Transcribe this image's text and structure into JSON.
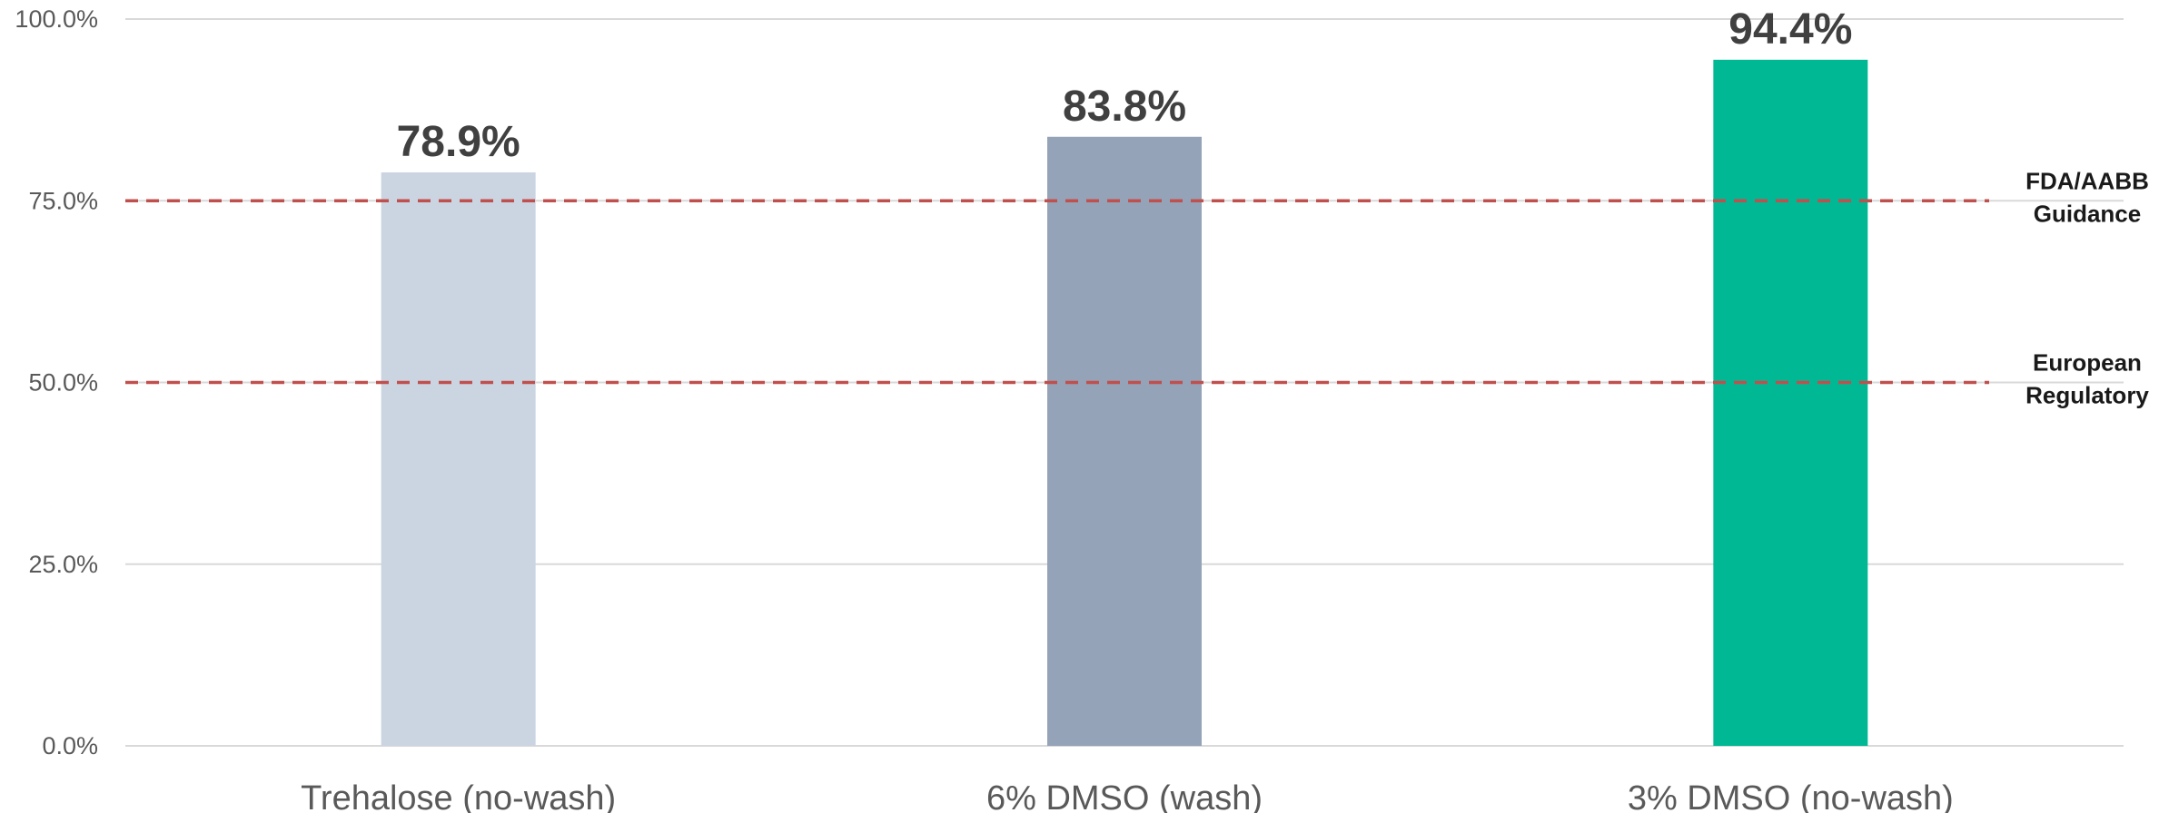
{
  "chart_data": {
    "type": "bar",
    "categories": [
      "Trehalose (no-wash)",
      "6% DMSO (wash)",
      "3% DMSO (no-wash)"
    ],
    "values": [
      78.9,
      83.8,
      94.4
    ],
    "value_labels": [
      "78.9%",
      "83.8%",
      "94.4%"
    ],
    "bar_colors": [
      "#cbd5e1",
      "#94a3b8",
      "#00b894"
    ],
    "ylim": [
      0,
      100
    ],
    "y_ticks": [
      0,
      25,
      50,
      75,
      100
    ],
    "y_tick_labels": [
      "0.0%",
      "25.0%",
      "50.0%",
      "75.0%",
      "100.0%"
    ],
    "grid": true,
    "grid_color": "#d9d9d9",
    "reference_lines": [
      {
        "value": 75,
        "label_lines": [
          "FDA/AABB",
          "Guidance"
        ],
        "color": "#c0504d"
      },
      {
        "value": 50,
        "label_lines": [
          "European",
          "Regulatory"
        ],
        "color": "#c0504d"
      }
    ],
    "legend": "none"
  }
}
